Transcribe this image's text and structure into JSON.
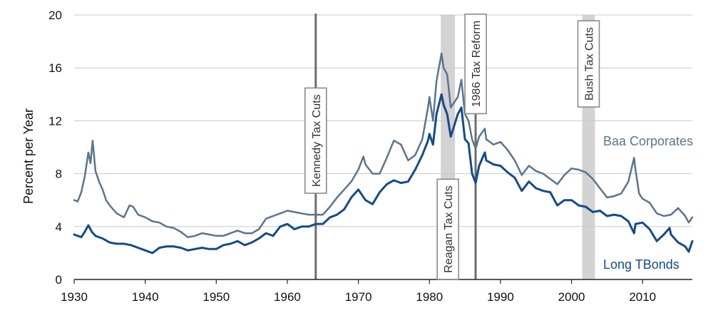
{
  "chart_data": {
    "type": "line",
    "xlabel": "",
    "ylabel": "Percent per Year",
    "xlim": [
      1930,
      2017
    ],
    "ylim": [
      0,
      20
    ],
    "x_ticks": [
      1930,
      1940,
      1950,
      1960,
      1970,
      1980,
      1990,
      2000,
      2010
    ],
    "y_ticks": [
      0,
      4,
      8,
      12,
      16,
      20
    ],
    "grid": "horizontal",
    "series": [
      {
        "name": "Baa Corporates",
        "color": "#5a7491",
        "x": [
          1930,
          1930.5,
          1931,
          1931.5,
          1932,
          1932.3,
          1932.6,
          1933,
          1933.5,
          1934,
          1934.5,
          1935,
          1936,
          1937,
          1937.8,
          1938.3,
          1939,
          1940,
          1941,
          1942,
          1943,
          1944,
          1945,
          1946,
          1947,
          1948,
          1949,
          1950,
          1951,
          1952,
          1953,
          1954,
          1955,
          1956,
          1957,
          1958,
          1959,
          1960,
          1961,
          1962,
          1963,
          1964,
          1965,
          1966,
          1967,
          1968,
          1969,
          1970,
          1970.7,
          1971,
          1972,
          1973,
          1974,
          1975,
          1976,
          1977,
          1978,
          1979,
          1979.8,
          1980,
          1980.5,
          1981,
          1981.7,
          1982,
          1982.5,
          1983,
          1984,
          1984.5,
          1985,
          1985.5,
          1986,
          1986.5,
          1987,
          1987.8,
          1988,
          1989,
          1990,
          1991,
          1992,
          1993,
          1994,
          1995,
          1996,
          1997,
          1998,
          1999,
          2000,
          2001,
          2002,
          2003,
          2004,
          2005,
          2006,
          2007,
          2008,
          2008.8,
          2009,
          2009.5,
          2010,
          2011,
          2012,
          2013,
          2014,
          2015,
          2016,
          2016.5,
          2017
        ],
        "values": [
          6.0,
          5.9,
          6.6,
          7.8,
          9.6,
          8.8,
          10.5,
          8.2,
          7.4,
          6.8,
          6.0,
          5.6,
          5.0,
          4.7,
          5.6,
          5.5,
          4.9,
          4.7,
          4.4,
          4.3,
          4.0,
          3.9,
          3.6,
          3.2,
          3.3,
          3.5,
          3.4,
          3.3,
          3.3,
          3.5,
          3.7,
          3.5,
          3.5,
          3.8,
          4.6,
          4.8,
          5.0,
          5.2,
          5.1,
          5.0,
          4.9,
          4.9,
          4.9,
          5.5,
          6.2,
          6.8,
          7.4,
          8.3,
          9.3,
          8.7,
          8.0,
          8.0,
          9.2,
          10.5,
          10.2,
          9.0,
          9.4,
          10.6,
          13.0,
          13.8,
          12.0,
          15.0,
          17.1,
          16.0,
          15.5,
          13.0,
          13.8,
          15.1,
          12.5,
          12.0,
          10.6,
          9.9,
          10.8,
          11.4,
          10.6,
          10.2,
          10.4,
          9.8,
          9.0,
          7.9,
          8.6,
          8.2,
          8.0,
          7.6,
          7.2,
          7.9,
          8.4,
          8.3,
          8.1,
          7.6,
          6.9,
          6.2,
          6.3,
          6.5,
          7.4,
          9.2,
          8.3,
          6.5,
          6.1,
          5.8,
          5.0,
          4.8,
          4.9,
          5.4,
          4.8,
          4.3,
          4.7
        ]
      },
      {
        "name": "Long TBonds",
        "color": "#134b8c",
        "x": [
          1930,
          1930.5,
          1931,
          1931.5,
          1932,
          1932.5,
          1933,
          1934,
          1935,
          1936,
          1937,
          1938,
          1939,
          1940,
          1941,
          1942,
          1943,
          1944,
          1945,
          1946,
          1947,
          1948,
          1949,
          1950,
          1951,
          1952,
          1953,
          1954,
          1955,
          1956,
          1957,
          1958,
          1959,
          1960,
          1961,
          1962,
          1963,
          1964,
          1965,
          1966,
          1967,
          1968,
          1969,
          1970,
          1971,
          1972,
          1973,
          1974,
          1975,
          1976,
          1977,
          1978,
          1979,
          1979.8,
          1980,
          1980.5,
          1981,
          1981.7,
          1982,
          1982.5,
          1983,
          1984,
          1984.5,
          1985,
          1985.5,
          1986,
          1986.5,
          1987,
          1987.8,
          1988,
          1989,
          1990,
          1991,
          1992,
          1993,
          1994,
          1995,
          1996,
          1997,
          1998,
          1999,
          2000,
          2001,
          2002,
          2003,
          2004,
          2005,
          2006,
          2007,
          2008,
          2008.8,
          2009,
          2010,
          2011,
          2012,
          2013,
          2013.8,
          2014,
          2015,
          2016,
          2016.5,
          2017
        ],
        "values": [
          3.4,
          3.3,
          3.2,
          3.6,
          4.1,
          3.6,
          3.3,
          3.1,
          2.8,
          2.7,
          2.7,
          2.6,
          2.4,
          2.2,
          2.0,
          2.4,
          2.5,
          2.5,
          2.4,
          2.2,
          2.3,
          2.4,
          2.3,
          2.3,
          2.6,
          2.7,
          2.9,
          2.6,
          2.8,
          3.1,
          3.5,
          3.3,
          4.0,
          4.2,
          3.8,
          4.0,
          4.0,
          4.2,
          4.2,
          4.7,
          4.9,
          5.3,
          6.2,
          6.8,
          6.0,
          5.7,
          6.6,
          7.2,
          7.5,
          7.3,
          7.4,
          8.3,
          9.4,
          10.5,
          11.0,
          10.2,
          12.5,
          14.0,
          13.2,
          12.5,
          10.8,
          12.5,
          13.0,
          10.6,
          10.3,
          8.0,
          7.3,
          8.6,
          9.6,
          9.0,
          8.7,
          8.6,
          8.1,
          7.7,
          6.7,
          7.4,
          6.9,
          6.7,
          6.6,
          5.6,
          6.0,
          6.0,
          5.6,
          5.5,
          5.1,
          5.2,
          4.8,
          4.9,
          4.8,
          4.4,
          3.5,
          4.2,
          4.3,
          3.8,
          2.9,
          3.4,
          3.9,
          3.4,
          2.8,
          2.5,
          2.1,
          2.9
        ]
      }
    ],
    "annotations": {
      "vlines": [
        {
          "x": 1964,
          "label": "Kennedy Tax Cuts",
          "label_center_y": 10.5
        },
        {
          "x": 1986.5,
          "label": "1986 Tax Reform",
          "label_center_y": 16.3
        }
      ],
      "bands": [
        {
          "x0": 1981.6,
          "x1": 1983.6,
          "label": "Reagan Tax Cuts",
          "label_center_y": 3.8
        },
        {
          "x0": 2001.5,
          "x1": 2003.3,
          "label": "Bush Tax Cuts",
          "label_center_y": 16.3
        }
      ]
    }
  }
}
